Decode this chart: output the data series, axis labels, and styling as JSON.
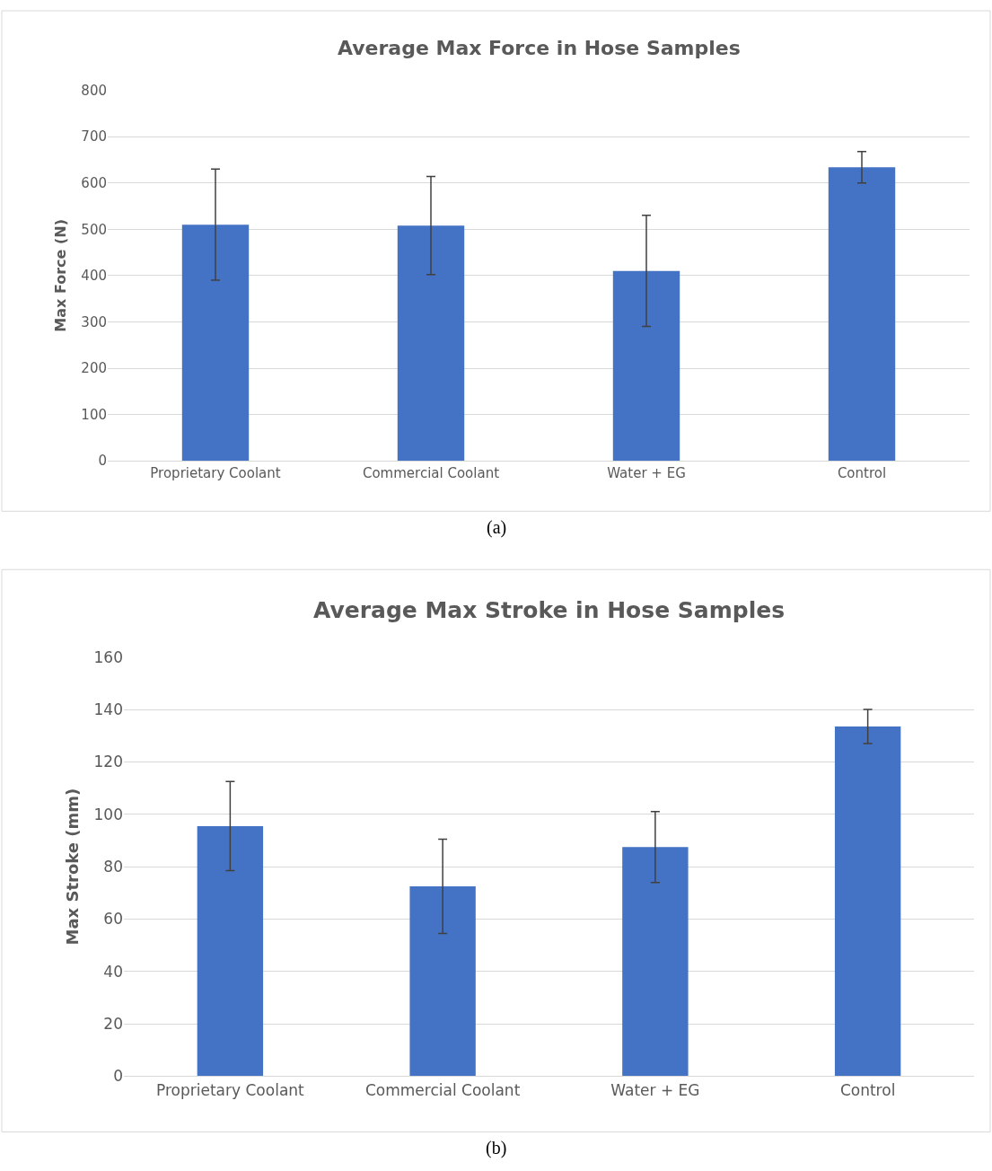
{
  "chart_data": [
    {
      "type": "bar",
      "title": "Average Max Force in Hose Samples",
      "ylabel": "Max Force (N)",
      "categories": [
        "Proprietary Coolant",
        "Commercial Coolant",
        "Water + EG",
        "Control"
      ],
      "values": [
        510,
        508,
        410,
        634
      ],
      "errors": [
        120,
        106,
        120,
        34
      ],
      "color": "#4472c4",
      "ylim": [
        0,
        800
      ],
      "yticks": [
        0,
        100,
        200,
        300,
        400,
        500,
        600,
        700,
        800
      ],
      "grid": "y",
      "annotations": [
        "(a)"
      ]
    },
    {
      "type": "bar",
      "title": "Average Max Stroke in Hose Samples",
      "ylabel": "Max Stroke (mm)",
      "categories": [
        "Proprietary Coolant",
        "Commercial Coolant",
        "Water + EG",
        "Control"
      ],
      "values": [
        95.5,
        72.5,
        87.5,
        133.5
      ],
      "errors": [
        17,
        18,
        13.5,
        6.5
      ],
      "color": "#4472c4",
      "ylim": [
        0,
        160
      ],
      "yticks": [
        0,
        20,
        40,
        60,
        80,
        100,
        120,
        140,
        160
      ],
      "grid": "y",
      "annotations": [
        "(b)"
      ]
    }
  ]
}
